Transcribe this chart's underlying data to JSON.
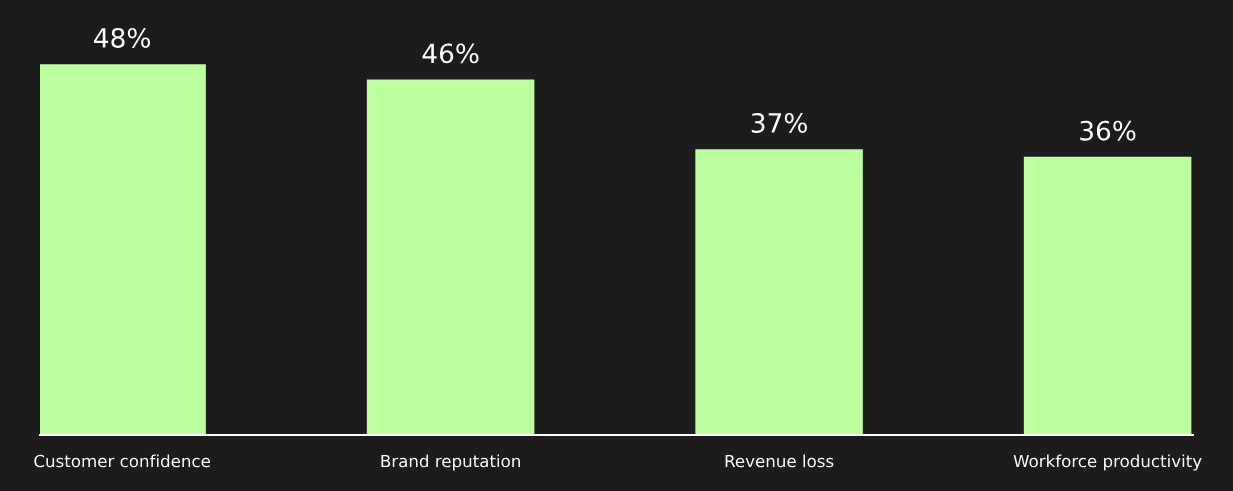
{
  "chart_data": {
    "type": "bar",
    "categories": [
      "Customer confidence",
      "Brand reputation",
      "Revenue loss",
      "Workforce productivity"
    ],
    "values": [
      48,
      46,
      37,
      36
    ],
    "value_labels": [
      "48%",
      "46%",
      "37%",
      "36%"
    ],
    "color": "#bbff9e",
    "grid": false,
    "legend": false
  }
}
